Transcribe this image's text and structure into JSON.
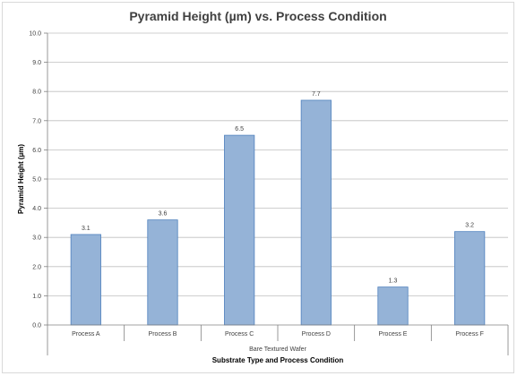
{
  "chart_data": {
    "type": "bar",
    "title": "Pyramid Height (µm) vs. Process Condition",
    "xlabel": "Substrate Type and Process Condition",
    "ylabel": "Pyramid Height (µm)",
    "group_label": "Bare Textured Wafer",
    "categories": [
      "Process A",
      "Process B",
      "Process C",
      "Process D",
      "Process E",
      "Process F"
    ],
    "values": [
      3.1,
      3.6,
      6.5,
      7.7,
      1.3,
      3.2
    ],
    "data_labels": [
      "3.1",
      "3.6",
      "6.5",
      "7.7",
      "1.3",
      "3.2"
    ],
    "ylim": [
      0,
      10
    ],
    "yticks": [
      "0.0",
      "1.0",
      "2.0",
      "3.0",
      "4.0",
      "5.0",
      "6.0",
      "7.0",
      "8.0",
      "9.0",
      "10.0"
    ],
    "grid": true,
    "legend": "none",
    "colors": {
      "bar_fill": "#95b3d7",
      "bar_stroke": "#4f81bd",
      "gridline": "#bfbfbf",
      "axis": "#808080"
    }
  }
}
